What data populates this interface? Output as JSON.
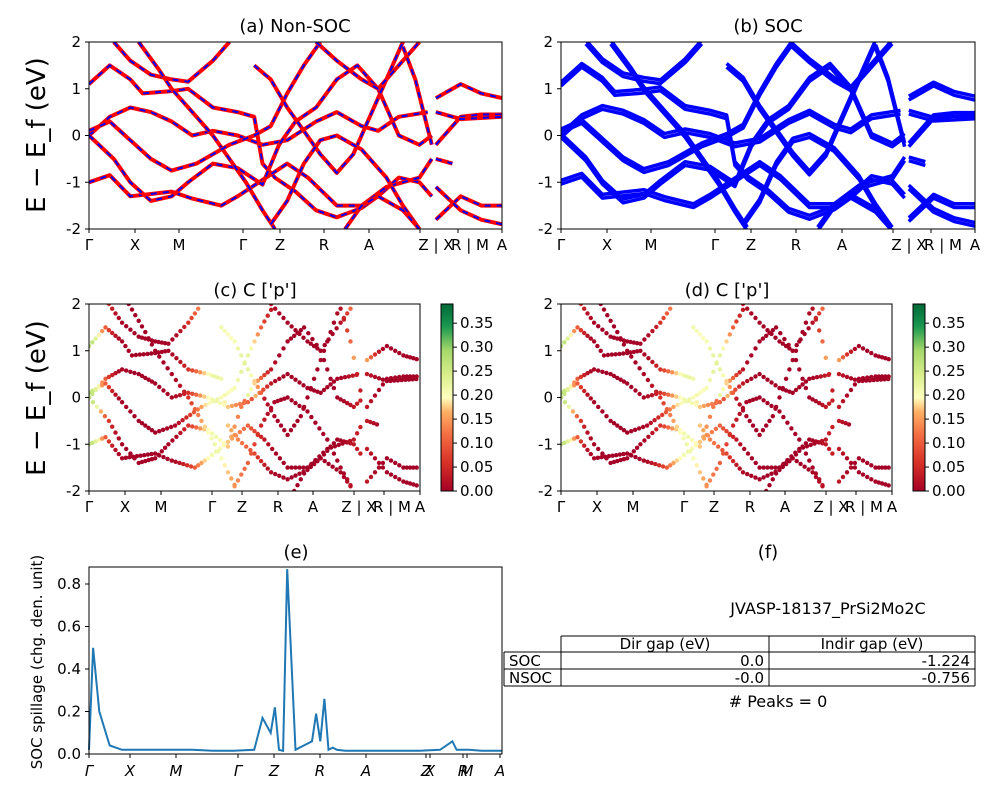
{
  "figure": {
    "ylabel_bands": "E − E_f (eV)",
    "kpath_labels": [
      "Γ",
      "X",
      "M",
      "Γ",
      "Z",
      "R",
      "A",
      "Z | X",
      "R | M",
      "A"
    ]
  },
  "chart_data": [
    {
      "id": "a",
      "type": "line",
      "title": "(a) Non-SOC",
      "ylim": [
        -2,
        2
      ],
      "yticks": [
        "-2",
        "-1",
        "0",
        "1",
        "2"
      ],
      "xticks": [
        "Γ",
        "X",
        "M",
        "Γ",
        "Z",
        "R",
        "A",
        "Z | X",
        "R | M",
        "A"
      ],
      "series_colors": [
        "#ff0000",
        "#0000ff"
      ],
      "style": "red bands with blue dashed overlay"
    },
    {
      "id": "b",
      "type": "line",
      "title": "(b) SOC",
      "ylim": [
        -2,
        2
      ],
      "yticks": [
        "-2",
        "-1",
        "0",
        "1",
        "2"
      ],
      "xticks": [
        "Γ",
        "X",
        "M",
        "Γ",
        "Z",
        "R",
        "A",
        "Z | X",
        "R | M",
        "A"
      ],
      "series_colors": [
        "#0000ff"
      ]
    },
    {
      "id": "c",
      "type": "scatter",
      "title": "(c)  C ['p']",
      "ylim": [
        -2,
        2
      ],
      "yticks": [
        "-2",
        "-1",
        "0",
        "1",
        "2"
      ],
      "xticks": [
        "Γ",
        "X",
        "M",
        "Γ",
        "Z",
        "R",
        "A",
        "Z | X",
        "R | M",
        "A"
      ],
      "colorbar": {
        "range": [
          0.0,
          0.39
        ],
        "ticks": [
          "0.00",
          "0.05",
          "0.10",
          "0.15",
          "0.20",
          "0.25",
          "0.30",
          "0.35"
        ],
        "colormap": "RdYlGn"
      }
    },
    {
      "id": "d",
      "type": "scatter",
      "title": "(d) C ['p']",
      "ylim": [
        -2,
        2
      ],
      "yticks": [
        "-2",
        "-1",
        "0",
        "1",
        "2"
      ],
      "xticks": [
        "Γ",
        "X",
        "M",
        "Γ",
        "Z",
        "R",
        "A",
        "Z | X",
        "R | M",
        "A"
      ],
      "colorbar": {
        "range": [
          0.0,
          0.39
        ],
        "ticks": [
          "0.00",
          "0.05",
          "0.10",
          "0.15",
          "0.20",
          "0.25",
          "0.30",
          "0.35"
        ],
        "colormap": "RdYlGn"
      }
    },
    {
      "id": "e",
      "type": "line",
      "title": "(e)",
      "ylabel": "SOC spillage (chg. den. unit)",
      "ylim": [
        0,
        0.88
      ],
      "yticks": [
        "0.0",
        "0.2",
        "0.4",
        "0.6",
        "0.8"
      ],
      "xticks": [
        "Γ",
        "X",
        "M",
        "Γ",
        "Z",
        "R",
        "A",
        "Z",
        "X",
        "R",
        "M",
        "A"
      ],
      "color": "#1f77b4",
      "x": [
        0,
        0.01,
        0.025,
        0.05,
        0.08,
        0.1,
        0.15,
        0.2,
        0.25,
        0.3,
        0.35,
        0.4,
        0.42,
        0.44,
        0.45,
        0.46,
        0.47,
        0.48,
        0.5,
        0.52,
        0.54,
        0.55,
        0.56,
        0.57,
        0.58,
        0.59,
        0.6,
        0.62,
        0.65,
        0.7,
        0.75,
        0.8,
        0.85,
        0.88,
        0.89,
        0.9,
        0.92,
        0.95,
        1.0
      ],
      "y": [
        0.02,
        0.5,
        0.2,
        0.04,
        0.02,
        0.02,
        0.02,
        0.02,
        0.02,
        0.015,
        0.015,
        0.02,
        0.17,
        0.1,
        0.22,
        0.02,
        0.015,
        0.87,
        0.02,
        0.04,
        0.06,
        0.19,
        0.06,
        0.26,
        0.02,
        0.03,
        0.02,
        0.015,
        0.015,
        0.015,
        0.015,
        0.015,
        0.02,
        0.06,
        0.02,
        0.02,
        0.02,
        0.015,
        0.015
      ]
    }
  ],
  "panel_f": {
    "title": "(f)",
    "material": "JVASP-18137_PrSi2Mo2C",
    "table": {
      "headers": [
        "",
        "Dir gap (eV)",
        "Indir gap (eV)"
      ],
      "rows": [
        [
          "SOC",
          "0.0",
          "-1.224"
        ],
        [
          "NSOC",
          "-0.0",
          "-0.756"
        ]
      ]
    },
    "peaks": "# Peaks = 0"
  }
}
